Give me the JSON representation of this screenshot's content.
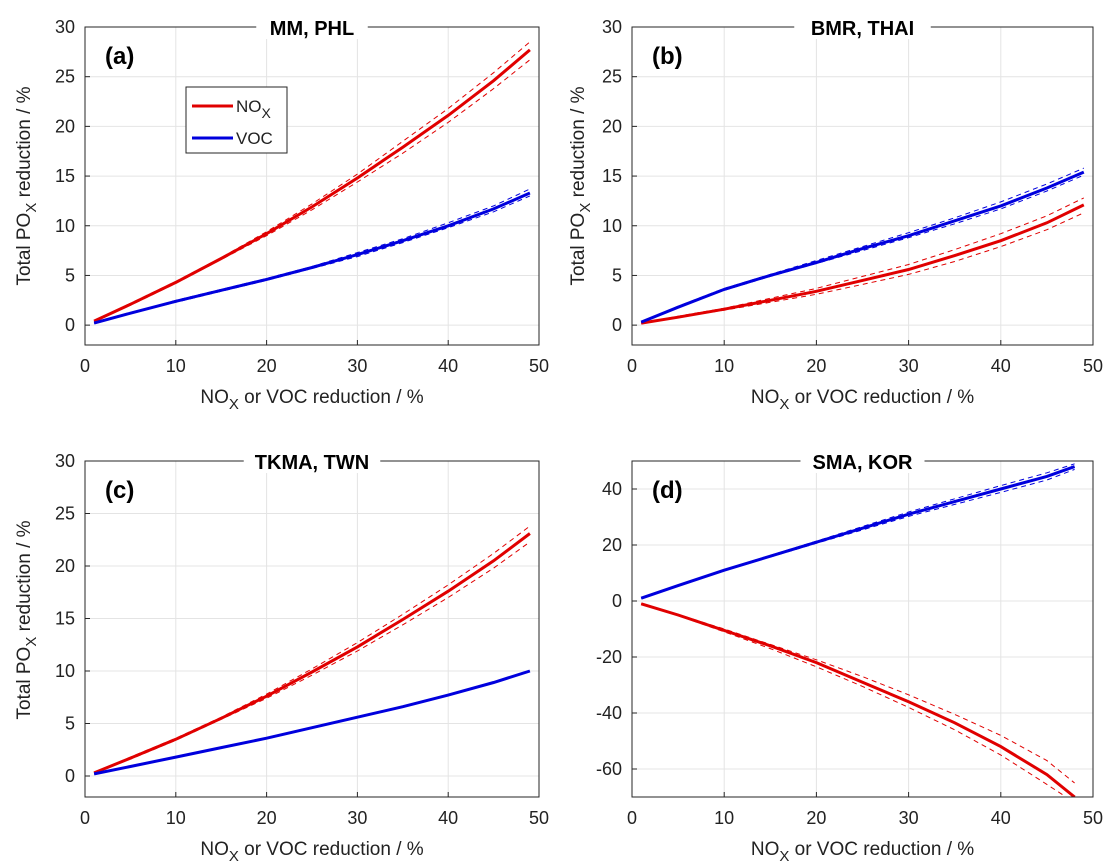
{
  "legend": {
    "entries": [
      {
        "label": "NO",
        "subscript": "X",
        "color": "#e00000"
      },
      {
        "label": "VOC",
        "subscript": "",
        "color": "#0000dd"
      }
    ]
  },
  "chart_data": [
    {
      "type": "line",
      "panel_label": "(a)",
      "title": "MM, PHL",
      "xlabel": "NO_X or VOC reduction / %",
      "ylabel": "Total PO_X reduction / %",
      "xlim": [
        0,
        50
      ],
      "ylim": [
        -2,
        30
      ],
      "xticks": [
        0,
        10,
        20,
        30,
        40,
        50
      ],
      "yticks": [
        0,
        5,
        10,
        15,
        20,
        25,
        30
      ],
      "grid": true,
      "legend": "upper-left",
      "x": [
        1,
        5,
        10,
        15,
        20,
        25,
        30,
        35,
        40,
        45,
        49
      ],
      "series": [
        {
          "name": "NO_X",
          "color": "#e00000",
          "values": [
            0.4,
            2.1,
            4.3,
            6.7,
            9.2,
            11.9,
            14.8,
            17.9,
            21.1,
            24.6,
            27.7
          ],
          "lower": [
            0.4,
            2.0,
            4.2,
            6.6,
            9.0,
            11.6,
            14.4,
            17.3,
            20.4,
            23.8,
            26.7
          ],
          "upper": [
            0.4,
            2.2,
            4.4,
            6.8,
            9.4,
            12.2,
            15.2,
            18.5,
            21.8,
            25.4,
            28.5
          ]
        },
        {
          "name": "VOC",
          "color": "#0000dd",
          "values": [
            0.2,
            1.2,
            2.4,
            3.5,
            4.6,
            5.8,
            7.1,
            8.5,
            10.0,
            11.7,
            13.3
          ],
          "lower": [
            0.2,
            1.2,
            2.3,
            3.4,
            4.5,
            5.7,
            6.9,
            8.3,
            9.8,
            11.4,
            13.0
          ],
          "upper": [
            0.2,
            1.2,
            2.5,
            3.6,
            4.7,
            5.9,
            7.3,
            8.7,
            10.3,
            12.0,
            13.7
          ]
        }
      ]
    },
    {
      "type": "line",
      "panel_label": "(b)",
      "title": "BMR, THAI",
      "xlabel": "NO_X or VOC reduction / %",
      "ylabel": "Total PO_X reduction / %",
      "xlim": [
        0,
        50
      ],
      "ylim": [
        -2,
        30
      ],
      "xticks": [
        0,
        10,
        20,
        30,
        40,
        50
      ],
      "yticks": [
        0,
        5,
        10,
        15,
        20,
        25,
        30
      ],
      "grid": true,
      "x": [
        1,
        5,
        10,
        15,
        20,
        25,
        30,
        35,
        40,
        45,
        49
      ],
      "series": [
        {
          "name": "NO_X",
          "color": "#e00000",
          "values": [
            0.2,
            0.8,
            1.6,
            2.5,
            3.4,
            4.5,
            5.6,
            7.0,
            8.5,
            10.3,
            12.1
          ],
          "lower": [
            0.2,
            0.8,
            1.5,
            2.3,
            3.1,
            4.1,
            5.1,
            6.4,
            7.9,
            9.6,
            11.3
          ],
          "upper": [
            0.2,
            0.9,
            1.7,
            2.7,
            3.7,
            4.9,
            6.1,
            7.6,
            9.2,
            11.0,
            12.8
          ]
        },
        {
          "name": "VOC",
          "color": "#0000dd",
          "values": [
            0.3,
            1.8,
            3.6,
            5.0,
            6.3,
            7.7,
            9.0,
            10.5,
            12.0,
            13.8,
            15.4
          ],
          "lower": [
            0.3,
            1.8,
            3.5,
            4.9,
            6.2,
            7.5,
            8.8,
            10.2,
            11.7,
            13.5,
            15.1
          ],
          "upper": [
            0.3,
            1.9,
            3.7,
            5.1,
            6.5,
            7.9,
            9.3,
            10.8,
            12.4,
            14.2,
            15.8
          ]
        }
      ]
    },
    {
      "type": "line",
      "panel_label": "(c)",
      "title": "TKMA, TWN",
      "xlabel": "NO_X or VOC reduction / %",
      "ylabel": "Total PO_X reduction / %",
      "xlim": [
        0,
        50
      ],
      "ylim": [
        -2,
        30
      ],
      "xticks": [
        0,
        10,
        20,
        30,
        40,
        50
      ],
      "yticks": [
        0,
        5,
        10,
        15,
        20,
        25,
        30
      ],
      "grid": true,
      "x": [
        1,
        5,
        10,
        15,
        20,
        25,
        30,
        35,
        40,
        45,
        49
      ],
      "series": [
        {
          "name": "NO_X",
          "color": "#e00000",
          "values": [
            0.3,
            1.7,
            3.5,
            5.5,
            7.6,
            9.9,
            12.3,
            14.9,
            17.6,
            20.5,
            23.1
          ],
          "lower": [
            0.3,
            1.6,
            3.4,
            5.4,
            7.4,
            9.6,
            11.9,
            14.4,
            17.0,
            19.8,
            22.3
          ],
          "upper": [
            0.3,
            1.8,
            3.6,
            5.6,
            7.8,
            10.2,
            12.7,
            15.4,
            18.2,
            21.2,
            23.8
          ]
        },
        {
          "name": "VOC",
          "color": "#0000dd",
          "values": [
            0.2,
            0.9,
            1.8,
            2.7,
            3.6,
            4.6,
            5.6,
            6.6,
            7.7,
            8.9,
            10.0
          ],
          "lower": [
            0.2,
            0.9,
            1.8,
            2.7,
            3.6,
            4.6,
            5.6,
            6.6,
            7.7,
            8.9,
            10.0
          ],
          "upper": [
            0.2,
            0.9,
            1.8,
            2.7,
            3.6,
            4.6,
            5.6,
            6.6,
            7.7,
            8.9,
            10.0
          ]
        }
      ]
    },
    {
      "type": "line",
      "panel_label": "(d)",
      "title": "SMA, KOR",
      "xlabel": "NO_X or VOC reduction / %",
      "ylabel": "",
      "xlim": [
        0,
        50
      ],
      "ylim": [
        -70,
        50
      ],
      "xticks": [
        0,
        10,
        20,
        30,
        40,
        50
      ],
      "yticks": [
        -60,
        -40,
        -20,
        0,
        20,
        40
      ],
      "grid": true,
      "x": [
        1,
        5,
        10,
        15,
        20,
        25,
        30,
        35,
        40,
        45,
        48
      ],
      "series": [
        {
          "name": "NO_X",
          "color": "#e00000",
          "values": [
            -1,
            -5,
            -10.5,
            -16,
            -22,
            -29,
            -36,
            -43.5,
            -52,
            -62,
            -70
          ],
          "lower": [
            -1,
            -5.2,
            -11,
            -17,
            -23.5,
            -30.5,
            -38,
            -46,
            -55,
            -65.5,
            -72
          ],
          "upper": [
            -1,
            -4.8,
            -10,
            -15.5,
            -21,
            -27,
            -33.5,
            -40.5,
            -48,
            -57,
            -65
          ]
        },
        {
          "name": "VOC",
          "color": "#0000dd",
          "values": [
            1,
            5.5,
            11,
            16,
            21,
            26,
            31,
            35.5,
            40,
            44.5,
            48
          ],
          "lower": [
            1,
            5.4,
            10.8,
            15.7,
            20.6,
            25.4,
            30.2,
            34.5,
            38.8,
            43.2,
            47
          ],
          "upper": [
            1,
            5.6,
            11.2,
            16.3,
            21.4,
            26.6,
            31.8,
            36.5,
            41.2,
            45.8,
            49
          ]
        }
      ]
    }
  ]
}
